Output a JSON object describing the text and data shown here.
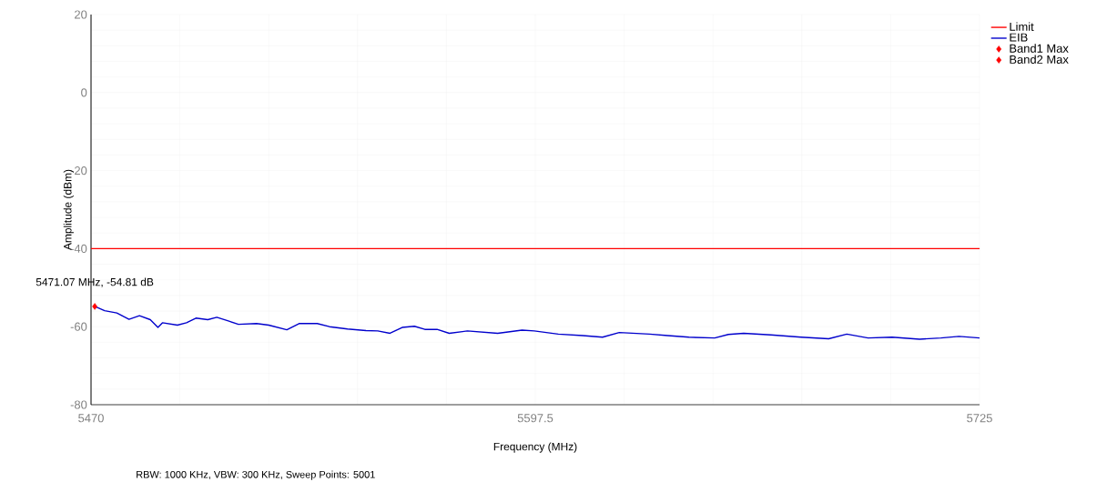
{
  "chart_data": {
    "type": "line",
    "xlabel": "Frequency (MHz)",
    "ylabel": "Amplitude (dBm)",
    "xlim": [
      5470,
      5725
    ],
    "xticks": [
      5470,
      5597.5,
      5725
    ],
    "ylim": [
      -80,
      20
    ],
    "yticks": [
      -80,
      -60,
      -40,
      -20,
      0,
      20
    ],
    "grid": true,
    "legend": "top right",
    "series": [
      {
        "name": "Limit",
        "color": "#ff0000",
        "x": [
          5470,
          5725
        ],
        "values": [
          -40,
          -40
        ]
      },
      {
        "name": "EIB",
        "color": "#0000cc",
        "x": [
          5471.07,
          5473.9,
          5477.4,
          5480.9,
          5483.9,
          5487.0,
          5489.2,
          5490.5,
          5494.8,
          5497.4,
          5500.1,
          5503.5,
          5506.1,
          5509.6,
          5512.3,
          5517.5,
          5521.0,
          5526.2,
          5529.7,
          5534.9,
          5538.4,
          5543.6,
          5548.9,
          5552.3,
          5555.8,
          5559.3,
          5562.8,
          5565.8,
          5569.3,
          5572.8,
          5578.0,
          5586.7,
          5593.7,
          5597.2,
          5604.1,
          5611.1,
          5616.8,
          5621.6,
          5630.3,
          5635.5,
          5641.6,
          5649.0,
          5652.9,
          5657.3,
          5665.1,
          5673.8,
          5681.7,
          5686.9,
          5693.0,
          5699.9,
          5707.8,
          5713.9,
          5719.1,
          5725.0
        ],
        "values": [
          -54.8,
          -55.9,
          -56.5,
          -58.1,
          -57.2,
          -58.2,
          -60.2,
          -59.0,
          -59.6,
          -59.0,
          -57.8,
          -58.2,
          -57.6,
          -58.6,
          -59.4,
          -59.2,
          -59.6,
          -60.8,
          -59.2,
          -59.2,
          -60.0,
          -60.6,
          -61.0,
          -61.1,
          -61.7,
          -60.2,
          -59.9,
          -60.7,
          -60.7,
          -61.7,
          -61.1,
          -61.7,
          -60.9,
          -61.1,
          -61.9,
          -62.3,
          -62.7,
          -61.5,
          -61.9,
          -62.3,
          -62.7,
          -62.9,
          -62.0,
          -61.7,
          -62.1,
          -62.7,
          -63.1,
          -61.9,
          -62.9,
          -62.7,
          -63.2,
          -62.9,
          -62.5,
          -62.9
        ]
      },
      {
        "name": "Band1 Max",
        "type": "scatter",
        "marker": "diamond",
        "color": "#ff0000",
        "x": [
          5471.07
        ],
        "values": [
          -54.81
        ]
      },
      {
        "name": "Band2 Max",
        "type": "scatter",
        "marker": "diamond",
        "color": "#ff0000",
        "x": [
          null
        ],
        "values": [
          null
        ]
      }
    ],
    "annotations": [
      {
        "text": "5471.07 MHz, -54.81 dB",
        "x": 5471.07,
        "y": -54.81
      },
      "RBW: 1000 KHz, VBW: 300 KHz, Sweep Points: 5001"
    ]
  }
}
